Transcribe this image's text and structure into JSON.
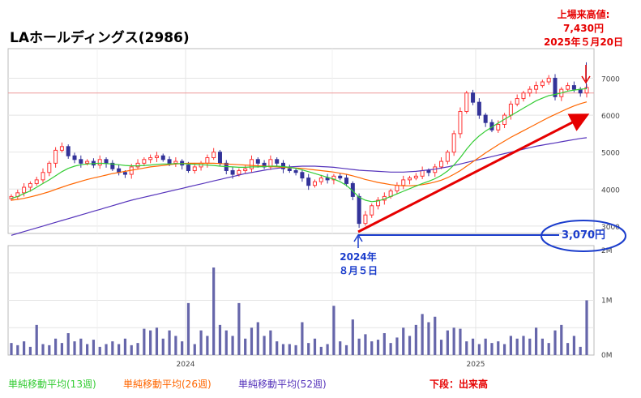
{
  "header": {
    "title": "LAホールディングス(2986)"
  },
  "annotations": {
    "high_line1": "上場来高値:",
    "high_line2": "7,430円",
    "high_line3": "2025年５月20日",
    "low_price": "3,070円",
    "low_date_line1": "2024年",
    "low_date_line2": "８月５日"
  },
  "legend": {
    "ma13": "単純移動平均(13週)",
    "ma26": "単純移動平均(26週)",
    "ma52": "単純移動平均(52週)",
    "volume_note": "下段：出来高"
  },
  "colors": {
    "ma13": "#33cc33",
    "ma26": "#ff6600",
    "ma52": "#5533bb",
    "up": "#ff3333",
    "down": "#333399",
    "volume": "#6666aa",
    "arrow_red": "#e60000",
    "arrow_blue": "#1a3ccc"
  },
  "chart_data": {
    "type": "candlestick",
    "x_ticks": [
      "2024",
      "2025"
    ],
    "price_axis": {
      "ticks": [
        3000,
        4000,
        5000,
        6000,
        7000
      ],
      "tick_labels": [
        "3000",
        "4000",
        "5000",
        "6000",
        "7000"
      ],
      "range": [
        2800,
        7800
      ]
    },
    "volume_axis": {
      "ticks": [
        "0M",
        "1M",
        "2M"
      ],
      "range_millions": [
        0,
        2
      ]
    },
    "reference_line": 6600,
    "weekly_close": [
      3800,
      3900,
      4050,
      4150,
      4250,
      4450,
      4700,
      5050,
      5150,
      4900,
      4800,
      4700,
      4750,
      4650,
      4800,
      4700,
      4550,
      4450,
      4400,
      4600,
      4700,
      4800,
      4850,
      4900,
      4800,
      4700,
      4750,
      4650,
      4500,
      4600,
      4700,
      4850,
      5000,
      4700,
      4500,
      4400,
      4500,
      4550,
      4800,
      4700,
      4600,
      4800,
      4700,
      4550,
      4500,
      4450,
      4300,
      4100,
      4200,
      4300,
      4250,
      4350,
      4300,
      4150,
      3800,
      3070,
      3300,
      3550,
      3700,
      3800,
      3950,
      4100,
      4250,
      4300,
      4350,
      4500,
      4450,
      4600,
      4750,
      5000,
      5500,
      6100,
      6600,
      6350,
      6000,
      5800,
      5600,
      5750,
      6000,
      6300,
      6450,
      6600,
      6700,
      6800,
      6900,
      7000,
      6500,
      6700,
      6800,
      6700,
      6600,
      6750
    ],
    "ma13": [
      3750,
      3800,
      3880,
      3950,
      4050,
      4150,
      4250,
      4360,
      4470,
      4560,
      4620,
      4660,
      4680,
      4690,
      4700,
      4690,
      4680,
      4660,
      4640,
      4630,
      4630,
      4640,
      4650,
      4670,
      4680,
      4680,
      4690,
      4690,
      4680,
      4670,
      4660,
      4650,
      4640,
      4620,
      4610,
      4600,
      4590,
      4590,
      4600,
      4600,
      4610,
      4620,
      4620,
      4610,
      4590,
      4560,
      4520,
      4470,
      4420,
      4370,
      4320,
      4270,
      4200,
      4100,
      3950,
      3780,
      3700,
      3660,
      3680,
      3730,
      3800,
      3870,
      3940,
      4010,
      4080,
      4150,
      4210,
      4280,
      4370,
      4490,
      4650,
      4850,
      5080,
      5280,
      5440,
      5570,
      5680,
      5790,
      5890,
      5990,
      6090,
      6190,
      6290,
      6390,
      6460,
      6530,
      6560,
      6600,
      6650,
      6680,
      6700,
      6720
    ],
    "ma26": [
      3700,
      3720,
      3750,
      3790,
      3830,
      3880,
      3930,
      3990,
      4050,
      4110,
      4160,
      4210,
      4260,
      4300,
      4340,
      4380,
      4420,
      4450,
      4480,
      4510,
      4540,
      4570,
      4600,
      4620,
      4640,
      4660,
      4680,
      4690,
      4700,
      4700,
      4700,
      4700,
      4700,
      4690,
      4680,
      4670,
      4660,
      4650,
      4640,
      4630,
      4620,
      4610,
      4600,
      4590,
      4580,
      4570,
      4560,
      4540,
      4520,
      4500,
      4480,
      4460,
      4430,
      4400,
      4360,
      4310,
      4260,
      4220,
      4180,
      4150,
      4120,
      4100,
      4090,
      4090,
      4100,
      4120,
      4150,
      4190,
      4240,
      4310,
      4400,
      4500,
      4620,
      4740,
      4860,
      4980,
      5090,
      5200,
      5300,
      5400,
      5490,
      5580,
      5670,
      5760,
      5850,
      5940,
      6020,
      6100,
      6180,
      6250,
      6310,
      6360
    ],
    "ma52": [
      2750,
      2800,
      2850,
      2900,
      2950,
      3000,
      3050,
      3100,
      3150,
      3200,
      3250,
      3300,
      3350,
      3400,
      3450,
      3500,
      3550,
      3600,
      3650,
      3700,
      3740,
      3780,
      3820,
      3860,
      3900,
      3940,
      3980,
      4020,
      4060,
      4100,
      4140,
      4180,
      4220,
      4260,
      4300,
      4340,
      4380,
      4420,
      4450,
      4480,
      4510,
      4540,
      4560,
      4580,
      4600,
      4610,
      4620,
      4620,
      4620,
      4610,
      4600,
      4590,
      4570,
      4550,
      4530,
      4510,
      4500,
      4490,
      4480,
      4470,
      4460,
      4460,
      4460,
      4470,
      4480,
      4500,
      4520,
      4540,
      4570,
      4600,
      4640,
      4680,
      4720,
      4760,
      4800,
      4840,
      4880,
      4920,
      4960,
      5000,
      5040,
      5080,
      5120,
      5160,
      5190,
      5220,
      5250,
      5280,
      5310,
      5340,
      5370,
      5390
    ],
    "volume_millions": [
      0.22,
      0.18,
      0.25,
      0.15,
      0.55,
      0.2,
      0.18,
      0.3,
      0.22,
      0.4,
      0.25,
      0.3,
      0.2,
      0.28,
      0.15,
      0.2,
      0.25,
      0.2,
      0.3,
      0.18,
      0.22,
      0.48,
      0.45,
      0.5,
      0.3,
      0.45,
      0.35,
      0.25,
      0.95,
      0.2,
      0.45,
      0.35,
      1.6,
      0.55,
      0.45,
      0.35,
      0.95,
      0.3,
      0.5,
      0.6,
      0.35,
      0.45,
      0.25,
      0.2,
      0.2,
      0.18,
      0.6,
      0.22,
      0.3,
      0.15,
      0.2,
      0.9,
      0.25,
      0.18,
      0.65,
      0.3,
      0.38,
      0.25,
      0.28,
      0.4,
      0.22,
      0.32,
      0.5,
      0.35,
      0.55,
      0.75,
      0.6,
      0.7,
      0.28,
      0.45,
      0.5,
      0.48,
      0.25,
      0.3,
      0.2,
      0.3,
      0.22,
      0.25,
      0.2,
      0.35,
      0.3,
      0.35,
      0.3,
      0.5,
      0.3,
      0.22,
      0.45,
      0.55,
      0.22,
      0.35,
      0.15,
      1.0
    ],
    "low": {
      "value": 3070,
      "date": "2024-08-05"
    },
    "high": {
      "value": 7430,
      "date": "2025-05-20"
    }
  }
}
